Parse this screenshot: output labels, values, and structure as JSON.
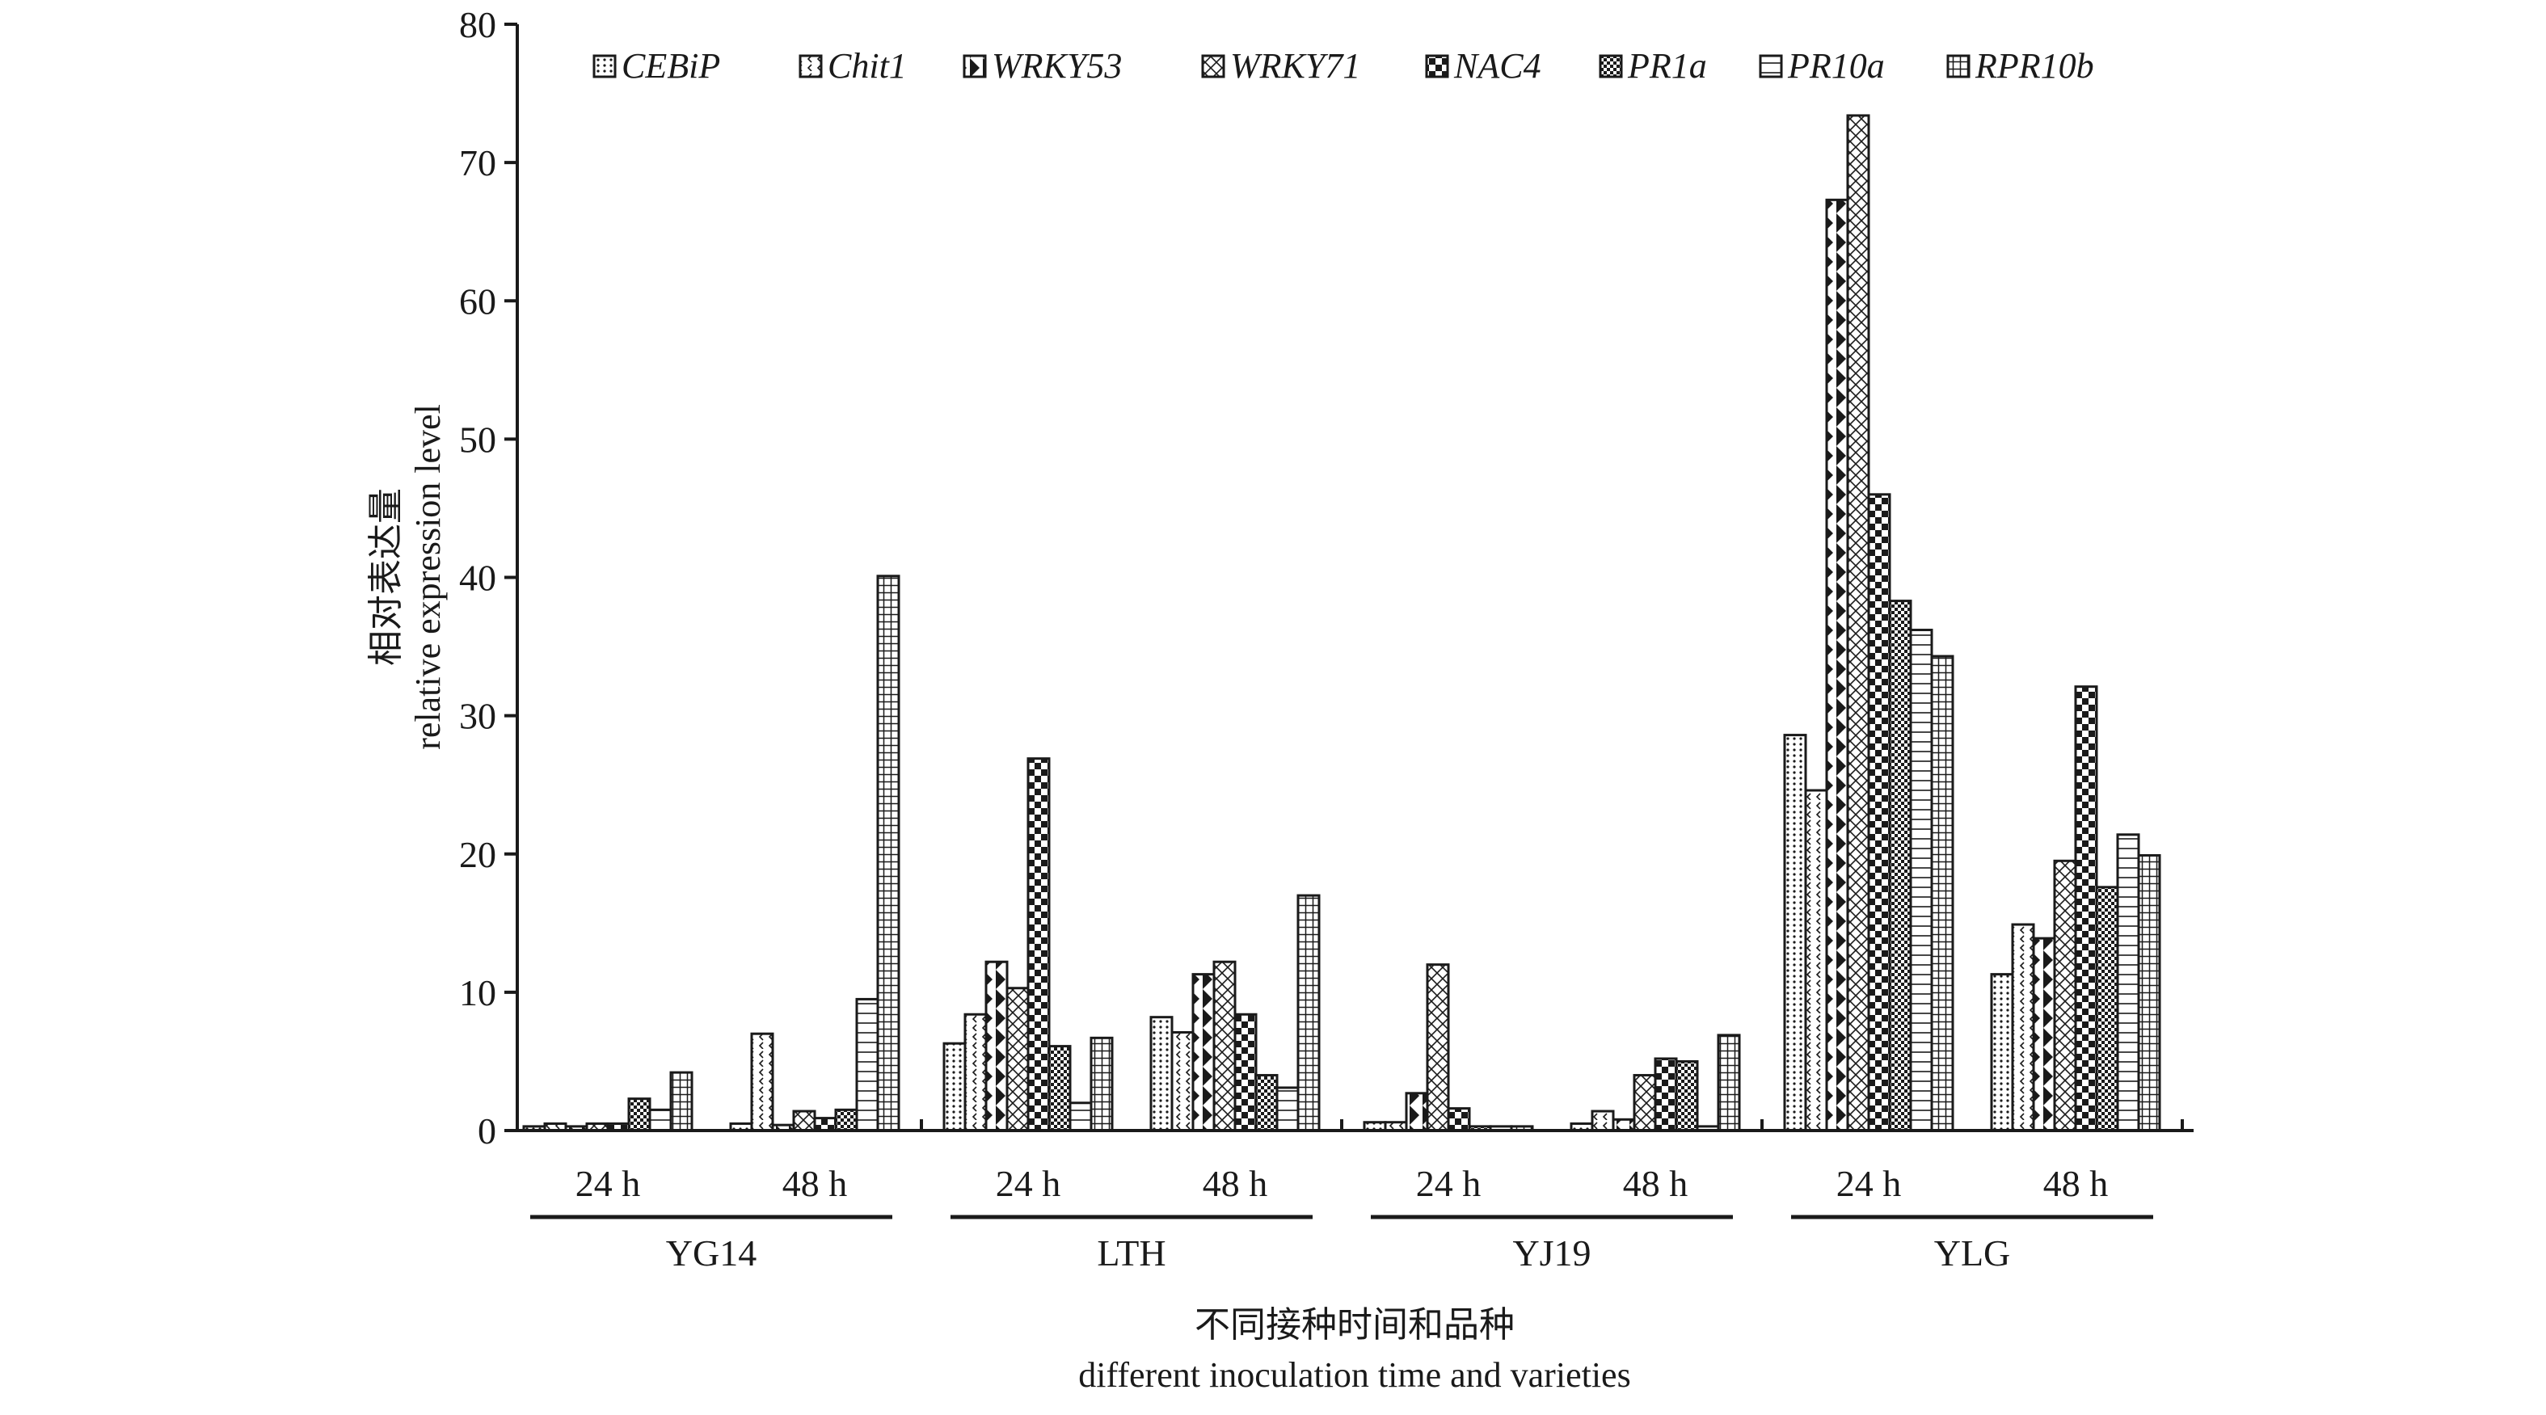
{
  "chart_data": {
    "type": "bar",
    "ylim": [
      0,
      80
    ],
    "y_ticks": [
      0,
      10,
      20,
      30,
      40,
      50,
      60,
      70,
      80
    ],
    "ylabel_cn": "相对表达量",
    "ylabel_en": "relative expression level",
    "xlabel_cn": "不同接种时间和品种",
    "xlabel_en": "different inoculation time and varieties",
    "legend_position": "top",
    "grid": false,
    "groups": [
      {
        "name": "YG14",
        "times": [
          "24 h",
          "48 h"
        ]
      },
      {
        "name": "LTH",
        "times": [
          "24 h",
          "48 h"
        ]
      },
      {
        "name": "YJ19",
        "times": [
          "24 h",
          "48 h"
        ]
      },
      {
        "name": "YLG",
        "times": [
          "24 h",
          "48 h"
        ]
      }
    ],
    "categories": [
      "YG14 24 h",
      "YG14 48 h",
      "LTH 24 h",
      "LTH 48 h",
      "YJ19 24 h",
      "YJ19 48 h",
      "YLG 24 h",
      "YLG 48 h"
    ],
    "series": [
      {
        "name": "CEBiP",
        "pattern": "dots",
        "values": [
          0.3,
          0.5,
          6.3,
          8.2,
          0.6,
          0.5,
          28.6,
          11.3
        ]
      },
      {
        "name": "Chit1",
        "pattern": "chevrons",
        "values": [
          0.5,
          7.0,
          8.4,
          7.1,
          0.6,
          1.4,
          24.6,
          14.9
        ]
      },
      {
        "name": "WRKY53",
        "pattern": "triangles",
        "values": [
          0.3,
          0.4,
          12.2,
          11.3,
          2.7,
          0.8,
          67.3,
          13.9
        ]
      },
      {
        "name": "WRKY71",
        "pattern": "crosshatch",
        "values": [
          0.5,
          1.4,
          10.3,
          12.2,
          12.0,
          4.0,
          73.4,
          19.5
        ]
      },
      {
        "name": "NAC4",
        "pattern": "checker",
        "values": [
          0.5,
          0.9,
          26.9,
          8.4,
          1.6,
          5.2,
          46.0,
          32.1
        ]
      },
      {
        "name": "PR1a",
        "pattern": "finecheck",
        "values": [
          2.3,
          1.5,
          6.1,
          4.0,
          0.3,
          5.0,
          38.3,
          17.6
        ]
      },
      {
        "name": "PR10a",
        "pattern": "hstripes",
        "values": [
          1.5,
          9.5,
          2.0,
          3.1,
          0.3,
          0.3,
          36.2,
          21.4
        ]
      },
      {
        "name": "RPR10b",
        "pattern": "grid",
        "values": [
          4.2,
          40.1,
          6.7,
          17.0,
          0.3,
          6.9,
          34.3,
          19.9
        ]
      }
    ]
  }
}
